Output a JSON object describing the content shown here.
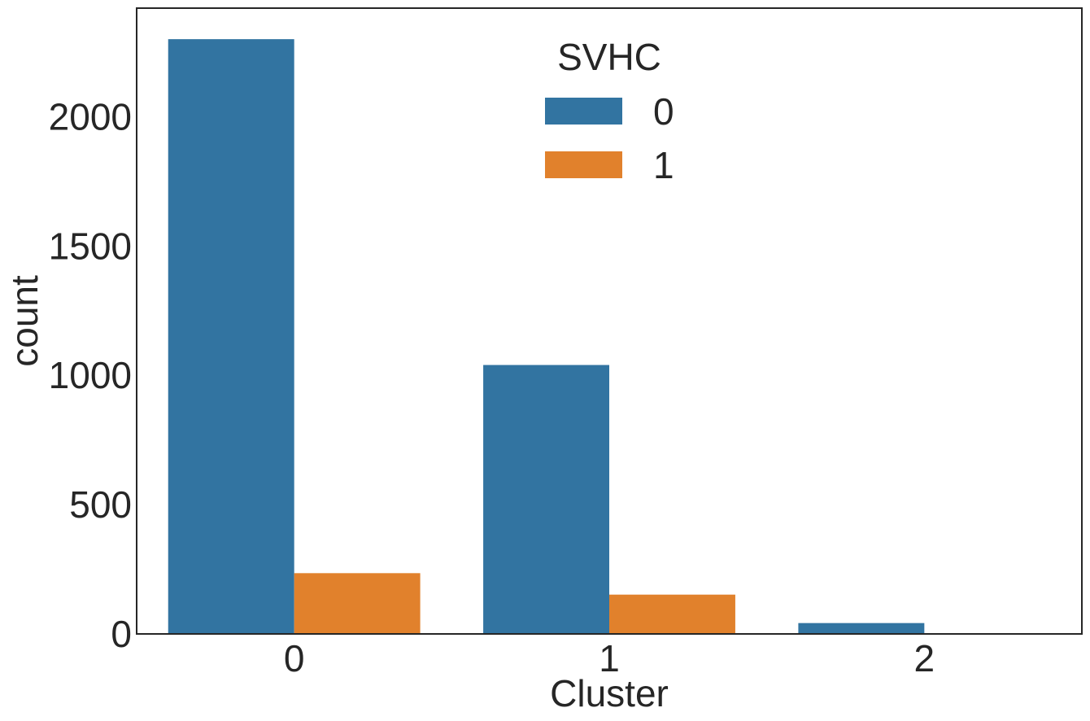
{
  "chart_data": {
    "type": "bar",
    "title": "",
    "xlabel": "Cluster",
    "ylabel": "count",
    "categories": [
      "0",
      "1",
      "2"
    ],
    "ylim": [
      0,
      2420
    ],
    "yticks": [
      0,
      500,
      1000,
      1500,
      2000
    ],
    "grid": false,
    "legend": {
      "title": "SVHC",
      "placement": "top-center"
    },
    "series": [
      {
        "name": "0",
        "color": "#3274a1",
        "values": [
          2300,
          1040,
          42
        ]
      },
      {
        "name": "1",
        "color": "#e1812c",
        "values": [
          235,
          152,
          0
        ]
      }
    ]
  }
}
